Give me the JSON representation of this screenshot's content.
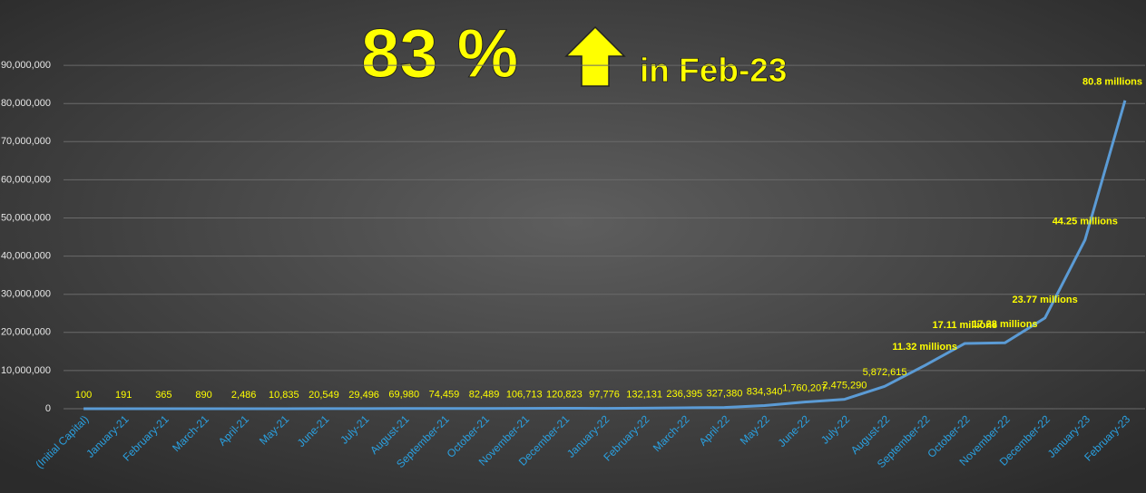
{
  "chart_data": {
    "type": "line",
    "title": "83 %",
    "subtitle": "in Feb-23",
    "categories": [
      "(Initial Capital)",
      "January-21",
      "February-21",
      "March-21",
      "April-21",
      "May-21",
      "June-21",
      "July-21",
      "August-21",
      "September-21",
      "October-21",
      "November-21",
      "December-21",
      "January-22",
      "February-22",
      "March-22",
      "April-22",
      "May-22",
      "June-22",
      "July-22",
      "August-22",
      "September-22",
      "October-22",
      "November-22",
      "December-22",
      "January-23",
      "February-23"
    ],
    "values": [
      100,
      191,
      365,
      890,
      2486,
      10835,
      20549,
      29496,
      69980,
      74459,
      82489,
      106713,
      120823,
      97776,
      132131,
      236395,
      327380,
      834340,
      1760207,
      2475290,
      5872615,
      11320000,
      17110000,
      17280000,
      23770000,
      44250000,
      80800000
    ],
    "value_labels": [
      "100",
      "191",
      "365",
      "890",
      "2,486",
      "10,835",
      "20,549",
      "29,496",
      "69,980",
      "74,459",
      "82,489",
      "106,713",
      "120,823",
      "97,776",
      "132,131",
      "236,395",
      "327,380",
      "834,340",
      "1,760,207",
      "2,475,290",
      "5,872,615",
      "11.32 millions",
      "17.11 millions",
      "17.28 millions",
      "23.77 millions",
      "44.25 millions",
      "80.8 millions"
    ],
    "color": "#5b9bd5",
    "ylim": [
      0,
      100000000
    ],
    "yticks": [
      0,
      {
        "value": 10000000,
        "label": "10,000,000"
      },
      {
        "value": 20000000,
        "label": "20,000,000"
      },
      {
        "value": 30000000,
        "label": "30,000,000"
      },
      {
        "value": 40000000,
        "label": "40,000,000"
      },
      {
        "value": 50000000,
        "label": "50,000,000"
      },
      {
        "value": 60000000,
        "label": "60,000,000"
      },
      {
        "value": 70000000,
        "label": "70,000,000"
      },
      {
        "value": 80000000,
        "label": "80,000,000"
      },
      {
        "value": 90000000,
        "label": "90,000,000"
      }
    ],
    "grid": true
  }
}
